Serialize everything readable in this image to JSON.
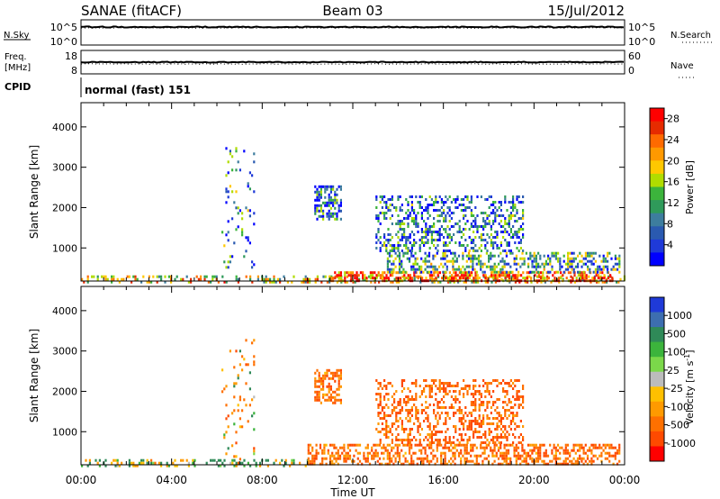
{
  "header": {
    "station": "SANAE (fitACF)",
    "beam": "Beam 03",
    "date": "15/Jul/2012"
  },
  "top_panels": {
    "nsky": {
      "left_label": "N.Sky",
      "left_ticks": [
        "10^5",
        "10^0"
      ],
      "right_label": "N.Search",
      "right_ticks": [
        "10^5",
        "10^0"
      ]
    },
    "freq": {
      "left_label_1": "Freq.",
      "left_label_2": "[MHz]",
      "left_ticks": [
        "18",
        "8"
      ],
      "right_label": "Nave",
      "right_ticks": [
        "60",
        "0"
      ]
    },
    "cpid": {
      "left_label": "CPID",
      "text": "normal (fast) 151"
    }
  },
  "axes": {
    "x_title": "Time UT",
    "x_ticks": [
      "00:00",
      "04:00",
      "08:00",
      "12:00",
      "16:00",
      "20:00",
      "00:00"
    ],
    "y_title": "Slant Range [km]",
    "y_ticks": [
      "1000",
      "2000",
      "3000",
      "4000"
    ]
  },
  "colorbars": {
    "power": {
      "title": "Power [dB]",
      "labels": [
        "28",
        "24",
        "20",
        "16",
        "12",
        "8",
        "4"
      ],
      "colors": [
        "#ff0000",
        "#e62b00",
        "#ff6a00",
        "#ff9900",
        "#ffc800",
        "#b0dc00",
        "#3cb43c",
        "#2f9a5a",
        "#3d7d9e",
        "#2a5ab0",
        "#1f3ad8",
        "#0000ff"
      ]
    },
    "velocity": {
      "title": "Velocity [m s^-1]",
      "labels": [
        "1000",
        "500",
        "100",
        "25",
        "-25",
        "-100",
        "-500",
        "-1000"
      ],
      "colors": [
        "#1f3ad8",
        "#3d6eb0",
        "#2f8a58",
        "#3cb43c",
        "#7bd84a",
        "#bcbcbc",
        "#ffc000",
        "#ff9a00",
        "#ff7000",
        "#ff4a00",
        "#ff0000"
      ]
    }
  },
  "chart_data": [
    {
      "type": "heatmap",
      "title": "Power [dB]",
      "xlabel": "Time UT",
      "ylabel": "Slant Range [km]",
      "xlim": [
        "00:00",
        "24:00"
      ],
      "ylim": [
        180,
        4600
      ],
      "clim": [
        0,
        30
      ],
      "scatter_regions": [
        {
          "t0": 0.0,
          "t1": 24.0,
          "r0": 180,
          "r1": 320,
          "value": 18,
          "density": 0.35
        },
        {
          "t0": 11.0,
          "t1": 23.5,
          "r0": 200,
          "r1": 420,
          "value": 26,
          "density": 0.55
        },
        {
          "t0": 13.5,
          "t1": 23.8,
          "r0": 420,
          "r1": 900,
          "value": 10,
          "density": 0.45
        },
        {
          "t0": 13.0,
          "t1": 19.5,
          "r0": 900,
          "r1": 2300,
          "value": 7,
          "density": 0.35
        },
        {
          "t0": 10.3,
          "t1": 11.5,
          "r0": 1700,
          "r1": 2550,
          "value": 6,
          "density": 0.55
        },
        {
          "t0": 6.2,
          "t1": 7.6,
          "r0": 300,
          "r1": 3500,
          "value": 8,
          "density": 0.08
        }
      ]
    },
    {
      "type": "heatmap",
      "title": "Velocity [m s^-1]",
      "xlabel": "Time UT",
      "ylabel": "Slant Range [km]",
      "xlim": [
        "00:00",
        "24:00"
      ],
      "ylim": [
        180,
        4600
      ],
      "clim": [
        -1000,
        1000
      ],
      "scatter_regions": [
        {
          "t0": 0.0,
          "t1": 10.0,
          "r0": 180,
          "r1": 320,
          "value": 60,
          "density": 0.3
        },
        {
          "t0": 10.0,
          "t1": 23.8,
          "r0": 200,
          "r1": 700,
          "value": -300,
          "density": 0.5
        },
        {
          "t0": 13.0,
          "t1": 19.5,
          "r0": 700,
          "r1": 2300,
          "value": -350,
          "density": 0.35
        },
        {
          "t0": 10.3,
          "t1": 11.5,
          "r0": 1700,
          "r1": 2550,
          "value": -300,
          "density": 0.55
        },
        {
          "t0": 6.2,
          "t1": 7.6,
          "r0": 300,
          "r1": 3500,
          "value": -150,
          "density": 0.08
        }
      ]
    }
  ]
}
